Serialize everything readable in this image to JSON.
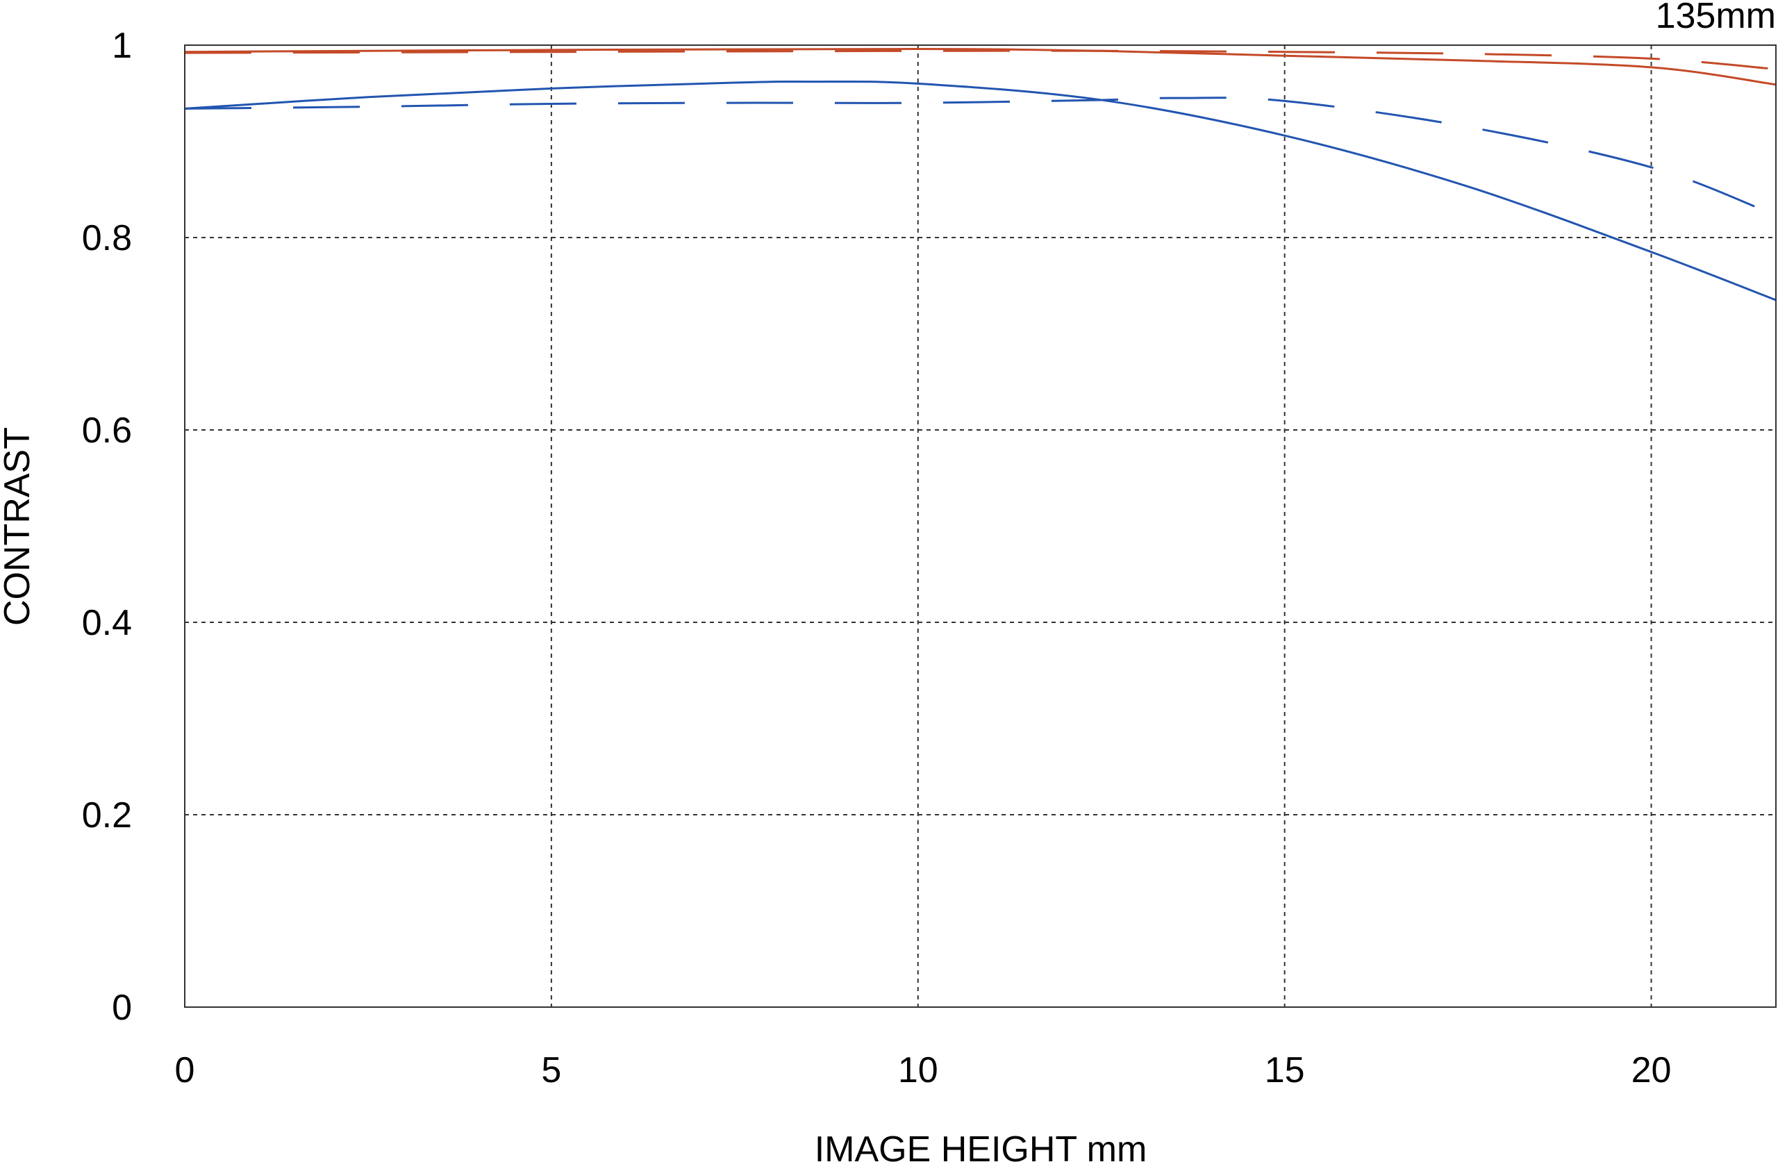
{
  "chart_data": {
    "type": "line",
    "title": "135mm",
    "xlabel": "IMAGE HEIGHT  mm",
    "ylabel": "CONTRAST",
    "xlim": [
      0,
      21.7
    ],
    "ylim": [
      0,
      1
    ],
    "xticks": [
      "0",
      "5",
      "10",
      "15",
      "20"
    ],
    "xtick_values": [
      0,
      5,
      10,
      15,
      20
    ],
    "yticks": [
      "0",
      "0.2",
      "0.4",
      "0.6",
      "0.8",
      "1"
    ],
    "ytick_values": [
      0,
      0.2,
      0.4,
      0.6,
      0.8,
      1
    ],
    "grid": true,
    "legend": "none",
    "series": [
      {
        "color": "#c44a28",
        "style": "solid",
        "x": [
          0,
          5,
          10,
          12.5,
          15,
          17.5,
          20,
          21.7
        ],
        "y": [
          0.993,
          0.995,
          0.996,
          0.994,
          0.989,
          0.984,
          0.977,
          0.959
        ]
      },
      {
        "color": "#c44a28",
        "style": "dashed",
        "x": [
          0,
          5,
          10,
          12.5,
          15,
          17.5,
          20,
          21.7
        ],
        "y": [
          0.992,
          0.993,
          0.994,
          0.994,
          0.993,
          0.991,
          0.986,
          0.975
        ]
      },
      {
        "color": "#2255b0",
        "style": "solid",
        "x": [
          0,
          2.5,
          5,
          7.5,
          8.5,
          10,
          12.5,
          15,
          17.5,
          20,
          21.7
        ],
        "y": [
          0.934,
          0.946,
          0.955,
          0.961,
          0.962,
          0.96,
          0.943,
          0.906,
          0.853,
          0.785,
          0.735
        ]
      },
      {
        "color": "#2255b0",
        "style": "dashed",
        "x": [
          0,
          2.5,
          5,
          7.5,
          10,
          12.5,
          13.5,
          15,
          17.5,
          20,
          21.7
        ],
        "y": [
          0.934,
          0.936,
          0.939,
          0.94,
          0.94,
          0.943,
          0.945,
          0.942,
          0.915,
          0.873,
          0.823
        ]
      }
    ]
  }
}
